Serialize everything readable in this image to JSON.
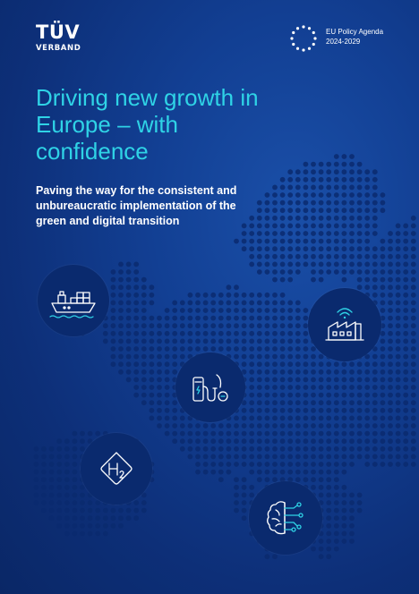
{
  "brand": {
    "logo_main": "TÜV",
    "logo_sub": "VERBAND"
  },
  "eu_label": {
    "line1": "EU Policy Agenda",
    "line2": "2024-2029"
  },
  "title": "Driving new growth in Europe – with confidence",
  "subtitle": "Paving the way for the consistent and unbureaucratic implementation of the green and digital transition",
  "colors": {
    "background": "#123f93",
    "title": "#2fd3e6",
    "icon_circle": "#0a2a6e",
    "icon_stroke": "#ffffff",
    "icon_accent": "#2fd3e6"
  },
  "icons": [
    {
      "name": "cargo-ship-icon"
    },
    {
      "name": "smart-factory-icon"
    },
    {
      "name": "ev-charging-icon"
    },
    {
      "name": "hydrogen-h2-icon"
    },
    {
      "name": "ai-brain-icon"
    }
  ]
}
